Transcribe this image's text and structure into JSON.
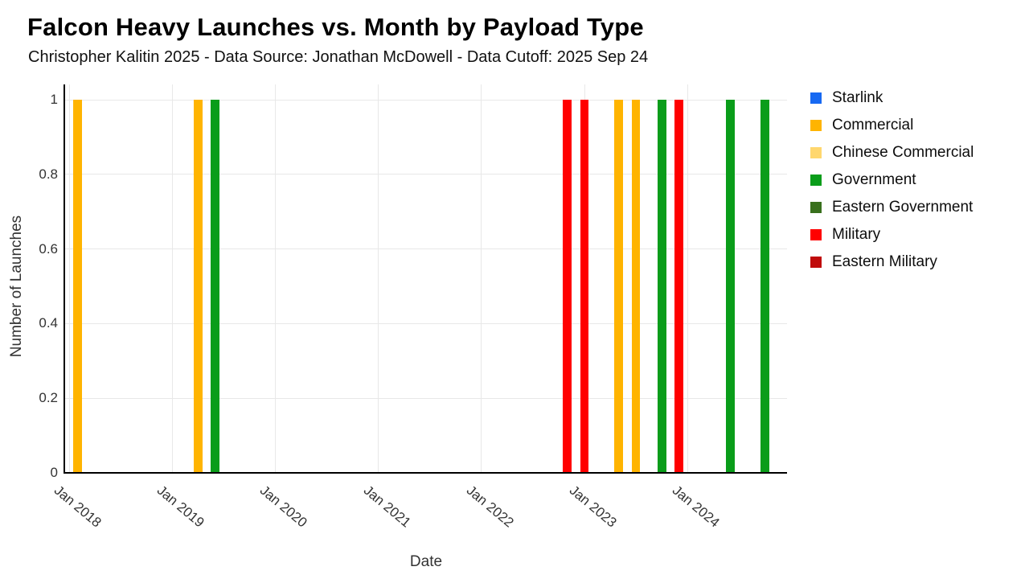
{
  "chart_data": {
    "type": "bar",
    "title": "Falcon Heavy Launches vs. Month by Payload Type",
    "subtitle": "Christopher Kalitin 2025 - Data Source: Jonathan McDowell - Data Cutoff: 2025 Sep 24",
    "xlabel": "Date",
    "ylabel": "Number of Launches",
    "ylim": [
      0,
      1
    ],
    "yticks": [
      0,
      0.2,
      0.4,
      0.6,
      0.8,
      1
    ],
    "xticks": [
      "Jan 2018",
      "Jan 2019",
      "Jan 2020",
      "Jan 2021",
      "Jan 2022",
      "Jan 2023",
      "Jan 2024"
    ],
    "grid": true,
    "legend_position": "right",
    "series": [
      {
        "name": "Starlink",
        "color": "#1769f2",
        "points": []
      },
      {
        "name": "Commercial",
        "color": "#ffb400",
        "points": [
          {
            "month": "Feb 2018",
            "value": 1
          },
          {
            "month": "Apr 2019",
            "value": 1
          },
          {
            "month": "May 2023",
            "value": 1
          },
          {
            "month": "Jul 2023",
            "value": 1
          }
        ]
      },
      {
        "name": "Chinese Commercial",
        "color": "#ffd76e",
        "points": []
      },
      {
        "name": "Government",
        "color": "#0a9d1a",
        "points": [
          {
            "month": "Jun 2019",
            "value": 1
          },
          {
            "month": "Oct 2023",
            "value": 1
          },
          {
            "month": "Jun 2024",
            "value": 1
          },
          {
            "month": "Oct 2024",
            "value": 1
          }
        ]
      },
      {
        "name": "Eastern Government",
        "color": "#39701d",
        "points": []
      },
      {
        "name": "Military",
        "color": "#ff0000",
        "points": [
          {
            "month": "Nov 2022",
            "value": 1
          },
          {
            "month": "Jan 2023",
            "value": 1
          },
          {
            "month": "Dec 2023",
            "value": 1
          }
        ]
      },
      {
        "name": "Eastern Military",
        "color": "#c00b0b",
        "points": []
      }
    ]
  }
}
